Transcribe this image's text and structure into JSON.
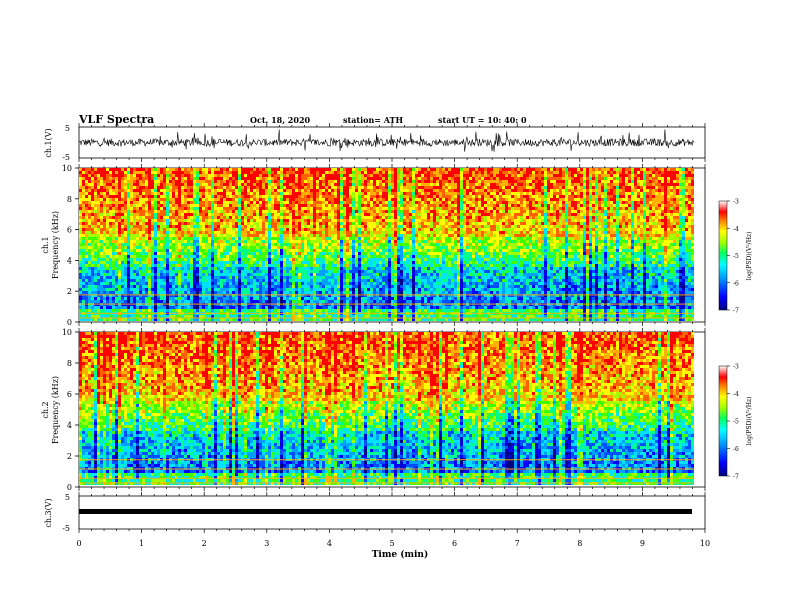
{
  "header": {
    "title": "VLF Spectra",
    "date": "Oct. 18, 2020",
    "station": "station= ATH",
    "start": "start UT =  10: 40: 0"
  },
  "chart_data": [
    {
      "type": "line",
      "panel": "ch1-waveform",
      "ylabel": "ch.1(V)",
      "ylim": [
        -5,
        5
      ],
      "yticks": [
        5,
        -5
      ],
      "xlim": [
        0,
        10
      ],
      "description_values": "noisy waveform approximately between -2.5 V and +3.5 V"
    },
    {
      "type": "heatmap",
      "panel": "ch1-spectrogram",
      "ylabel": "Frequency (kHz)",
      "channel_label": "ch.1",
      "ylim": [
        0,
        10
      ],
      "yticks": [
        0,
        2,
        4,
        6,
        8,
        10
      ],
      "xlim": [
        0,
        9.83
      ],
      "colorbar": {
        "label": "log(PSD)(V²/Hz)",
        "range": [
          -7,
          -3
        ],
        "ticks": [
          -3,
          -4,
          -5,
          -6,
          -7
        ]
      }
    },
    {
      "type": "heatmap",
      "panel": "ch2-spectrogram",
      "ylabel": "Frequency (kHz)",
      "channel_label": "ch.2",
      "ylim": [
        0,
        10
      ],
      "yticks": [
        0,
        2,
        4,
        6,
        8,
        10
      ],
      "xlim": [
        0,
        9.83
      ],
      "colorbar": {
        "label": "log(PSD)(V²/Hz)",
        "range": [
          -7,
          -3
        ],
        "ticks": [
          -3,
          -4,
          -5,
          -6,
          -7
        ]
      }
    },
    {
      "type": "line",
      "panel": "ch3-waveform",
      "ylabel": "ch.3(V)",
      "ylim": [
        -5,
        5
      ],
      "yticks": [
        5,
        -5
      ],
      "xlim": [
        0,
        10
      ],
      "x": [
        0,
        9.83
      ],
      "y": [
        -1.3,
        -1.3
      ]
    }
  ],
  "xaxis": {
    "label": "Time (min)",
    "ticks": [
      "0",
      "1",
      "2",
      "3",
      "4",
      "5",
      "6",
      "7",
      "8",
      "9",
      "10"
    ]
  },
  "colormap": [
    "#000080",
    "#0000ff",
    "#00a0ff",
    "#00ffff",
    "#00ff80",
    "#80ff00",
    "#ffff00",
    "#ff8000",
    "#ff0000",
    "#ffffff"
  ]
}
